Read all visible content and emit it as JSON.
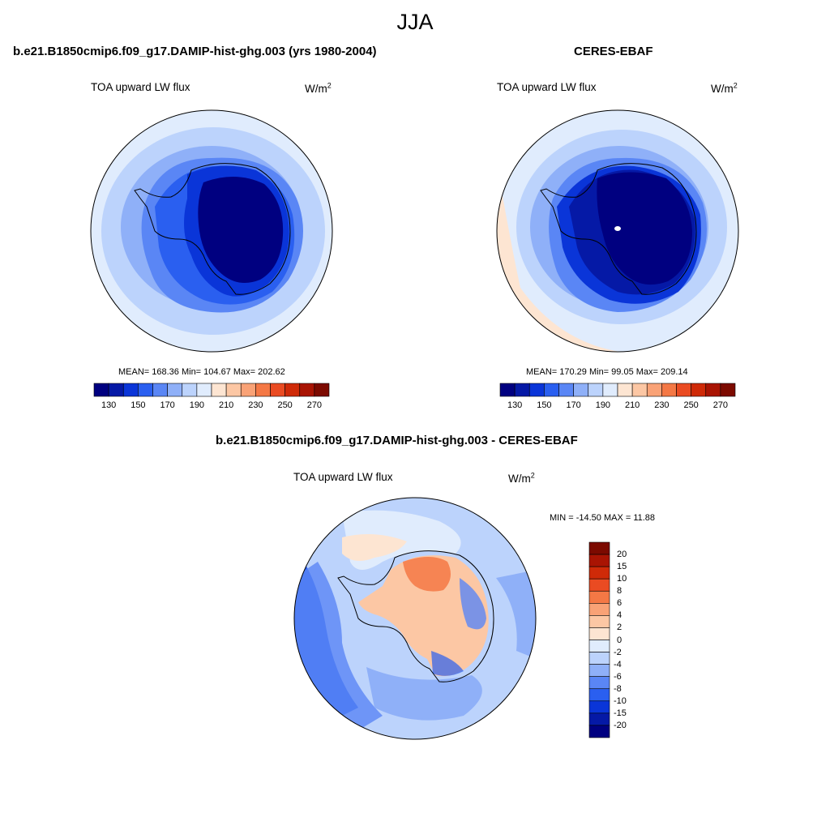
{
  "page": {
    "title": "JJA"
  },
  "colors": {
    "c1": "#000080",
    "c2": "#0519a6",
    "c3": "#0a35d8",
    "c4": "#2a5ff0",
    "c5": "#5a86f5",
    "c6": "#8fb0f8",
    "c7": "#bcd3fc",
    "c8": "#e0ecfd",
    "c9": "#fde5d2",
    "c10": "#fcc7a4",
    "c11": "#f9a276",
    "c12": "#f47845",
    "c13": "#ea4b22",
    "c14": "#cf2a08",
    "c15": "#a91403",
    "c16": "#7c0a00"
  },
  "chart_data": [
    {
      "type": "heatmap",
      "title": "b.e21.B1850cmip6.f09_g17.DAMIP-hist-ghg.003 (yrs 1980-2004)",
      "variable_label": "TOA upward LW flux",
      "units": "W/m",
      "units_exponent": "2",
      "stats_text": "MEAN= 168.36  Min= 104.67  Max= 202.62",
      "mean": 168.36,
      "min": 104.67,
      "max": 202.62,
      "projection": "south-polar-stereographic",
      "colorbar": {
        "orientation": "horizontal",
        "levels": [
          120,
          130,
          140,
          150,
          160,
          170,
          180,
          190,
          200,
          210,
          220,
          230,
          240,
          250,
          260,
          270
        ],
        "tick_labels": [
          "130",
          "150",
          "170",
          "190",
          "210",
          "230",
          "250",
          "270"
        ],
        "colors": [
          "#000080",
          "#0519a6",
          "#0a35d8",
          "#2a5ff0",
          "#5a86f5",
          "#8fb0f8",
          "#bcd3fc",
          "#e0ecfd",
          "#fde5d2",
          "#fcc7a4",
          "#f9a276",
          "#f47845",
          "#ea4b22",
          "#cf2a08",
          "#a91403",
          "#7c0a00"
        ]
      }
    },
    {
      "type": "heatmap",
      "title": "CERES-EBAF",
      "variable_label": "TOA upward LW flux",
      "units": "W/m",
      "units_exponent": "2",
      "stats_text": "MEAN= 170.29  Min=  99.05  Max= 209.14",
      "mean": 170.29,
      "min": 99.05,
      "max": 209.14,
      "projection": "south-polar-stereographic",
      "colorbar": {
        "orientation": "horizontal",
        "levels": [
          120,
          130,
          140,
          150,
          160,
          170,
          180,
          190,
          200,
          210,
          220,
          230,
          240,
          250,
          260,
          270
        ],
        "tick_labels": [
          "130",
          "150",
          "170",
          "190",
          "210",
          "230",
          "250",
          "270"
        ],
        "colors": [
          "#000080",
          "#0519a6",
          "#0a35d8",
          "#2a5ff0",
          "#5a86f5",
          "#8fb0f8",
          "#bcd3fc",
          "#e0ecfd",
          "#fde5d2",
          "#fcc7a4",
          "#f9a276",
          "#f47845",
          "#ea4b22",
          "#cf2a08",
          "#a91403",
          "#7c0a00"
        ]
      }
    },
    {
      "type": "heatmap",
      "title": "b.e21.B1850cmip6.f09_g17.DAMIP-hist-ghg.003 - CERES-EBAF",
      "variable_label": "TOA upward LW flux",
      "units": "W/m",
      "units_exponent": "2",
      "stats_text": "MIN = -14.50 MAX =  11.88",
      "min": -14.5,
      "max": 11.88,
      "projection": "south-polar-stereographic",
      "colorbar": {
        "orientation": "vertical",
        "tick_labels": [
          "20",
          "15",
          "10",
          "8",
          "6",
          "4",
          "2",
          "0",
          "-2",
          "-4",
          "-6",
          "-8",
          "-10",
          "-15",
          "-20"
        ],
        "colors": [
          "#7c0a00",
          "#a91403",
          "#cf2a08",
          "#ea4b22",
          "#f47845",
          "#f9a276",
          "#fcc7a4",
          "#fde5d2",
          "#e0ecfd",
          "#bcd3fc",
          "#8fb0f8",
          "#5a86f5",
          "#2a5ff0",
          "#0a35d8",
          "#0519a6",
          "#000080"
        ]
      }
    }
  ]
}
